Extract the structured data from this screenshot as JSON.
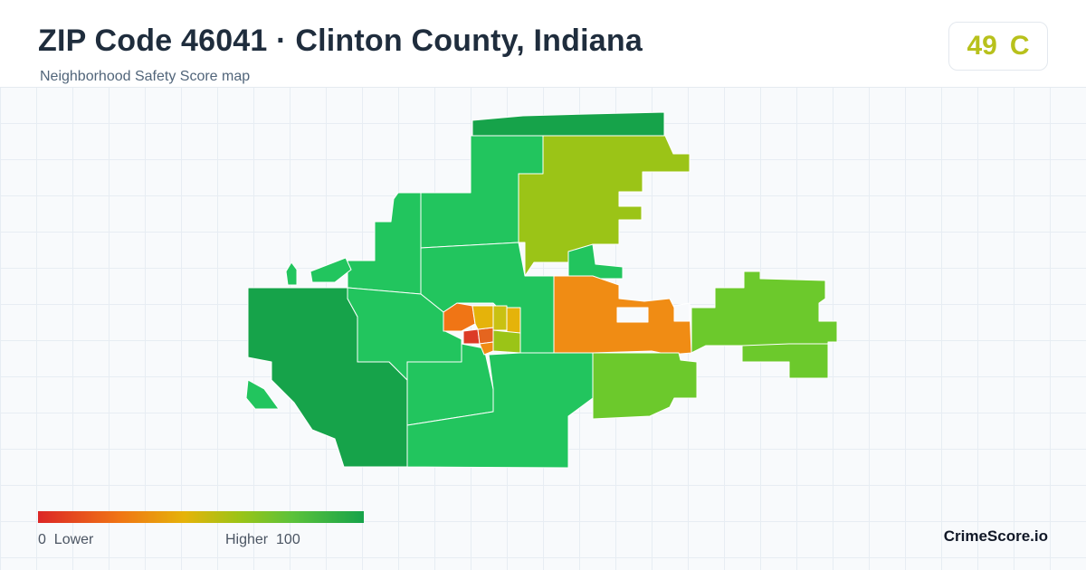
{
  "header": {
    "title": "ZIP Code 46041 · Clinton County, Indiana",
    "subtitle": "Neighborhood Safety Score map"
  },
  "score": {
    "value": "49",
    "grade": "C",
    "color": "#b8c11c"
  },
  "legend": {
    "low_value": "0",
    "low_label": "Lower",
    "high_label": "Higher",
    "high_value": "100",
    "colors": [
      "#dc2626",
      "#f07515",
      "#e5b30a",
      "#9bc417",
      "#5cc23a",
      "#16a34a"
    ]
  },
  "brand": "CrimeScore.io",
  "map": {
    "region_colors": {
      "dark_green": "#16a34a",
      "green": "#22c55e",
      "light_green": "#6cc92c",
      "yellow_green": "#9bc417",
      "orange": "#f08c14",
      "red": "#dc3b26",
      "yellow": "#e5b30a"
    }
  }
}
